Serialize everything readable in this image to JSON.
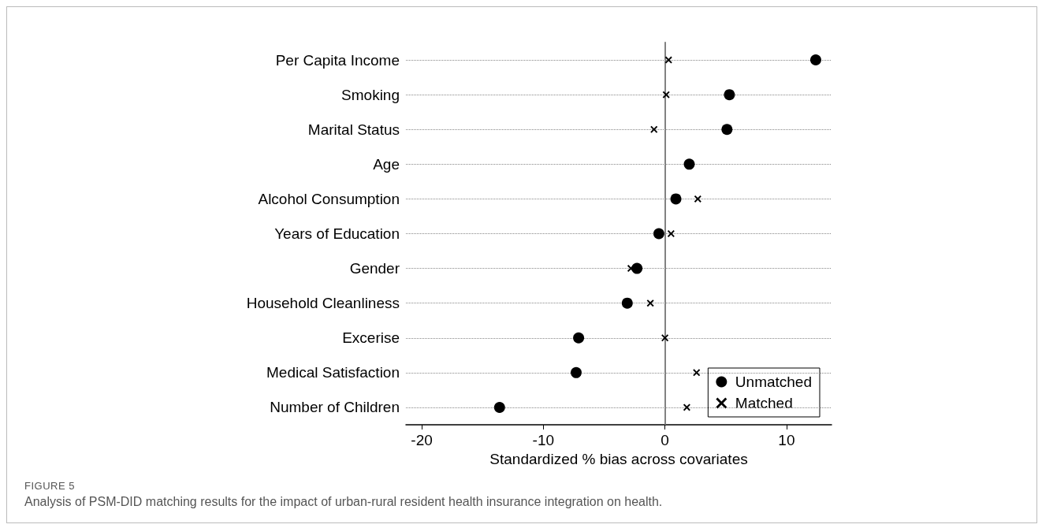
{
  "chart_data": {
    "type": "scatter",
    "orientation": "horizontal",
    "xlabel": "Standardized % bias across covariates",
    "categories": [
      "Per Capita Income",
      "Smoking",
      "Marital Status",
      "Age",
      "Alcohol Consumption",
      "Years of Education",
      "Gender",
      "Household Cleanliness",
      "Excerise",
      "Medical Satisfaction",
      "Number of Children"
    ],
    "series": [
      {
        "name": "Unmatched",
        "color": "#000000",
        "marker": "circle",
        "values": [
          12.4,
          5.3,
          5.1,
          2.0,
          0.9,
          -0.5,
          -2.3,
          -3.1,
          -7.1,
          -7.3,
          -13.6
        ]
      },
      {
        "name": "Matched",
        "color": "#000000",
        "marker": "cross",
        "values": [
          0.3,
          0.1,
          -0.9,
          null,
          2.7,
          0.5,
          -2.8,
          -1.2,
          0.0,
          2.6,
          1.8
        ]
      }
    ],
    "xlim": [
      -21.3,
      13.7
    ],
    "xticks": [
      -20,
      -10,
      0,
      10
    ],
    "ref_lines": [
      {
        "axis": "x",
        "value": 0,
        "color": "#999999"
      }
    ],
    "grid": "y",
    "line_style": "dotted",
    "legend": "bottom right",
    "annotations": [
      "FIGURE 5",
      "Analysis of PSM-DID matching results for the impact of urban-rural resident health insurance integration on health."
    ]
  }
}
